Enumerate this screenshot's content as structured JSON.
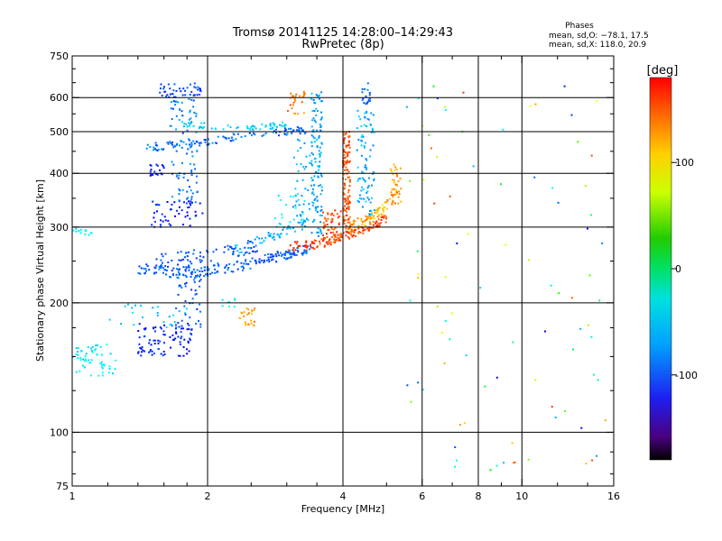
{
  "chart_data": {
    "type": "scatter",
    "title": "Tromsø 20141125 14:28:00–14:29:43",
    "subtitle": "RwPretec (8p)",
    "xlabel": "Frequency [MHz]",
    "ylabel": "Stationary phase Virtual Height [km]",
    "x_scale": "log",
    "y_scale": "log",
    "xlim": [
      1,
      16
    ],
    "ylim": [
      75,
      750
    ],
    "x_ticks": [
      1,
      2,
      4,
      6,
      8,
      10,
      16
    ],
    "x_tick_labels": [
      "1",
      "2",
      "4",
      "6",
      "8",
      "10",
      "16"
    ],
    "y_ticks": [
      75,
      100,
      200,
      300,
      400,
      500,
      600,
      750
    ],
    "y_tick_labels": [
      "75",
      "100",
      "200",
      "300",
      "400",
      "500",
      "600",
      "750"
    ],
    "x_minor_ticks": [
      1.2,
      1.4,
      1.6,
      1.8,
      2.5,
      3,
      3.5,
      5,
      7,
      9,
      12,
      14
    ],
    "y_minor_ticks": [
      80,
      90,
      125,
      150,
      175,
      250,
      350,
      450,
      550,
      650,
      700
    ],
    "x_gridlines": [
      2,
      4,
      6,
      8,
      10
    ],
    "y_gridlines": [
      100,
      200,
      300,
      400,
      500,
      600
    ],
    "grid": true,
    "phases_legend": {
      "title": "Phases",
      "lines": [
        "mean, sd,O: −78.1, 17.5",
        "mean, sd,X: 118.0, 20.9"
      ]
    },
    "colorbar": {
      "label": "[deg]",
      "min": -180,
      "max": 180,
      "ticks": [
        100,
        0,
        -100
      ],
      "tick_labels": [
        "100",
        "0",
        "-100"
      ],
      "colormap": "rainbow"
    },
    "traces": [
      {
        "kind": "band",
        "x": [
          1.0,
          1.25
        ],
        "y": [
          135,
          160
        ],
        "phase_range": [
          -65,
          -40
        ],
        "count": 60
      },
      {
        "kind": "curve",
        "pts": [
          [
            1.0,
            295
          ],
          [
            1.05,
            292
          ],
          [
            1.12,
            290
          ]
        ],
        "phase_range": [
          -60,
          -45
        ],
        "count": 14
      },
      {
        "kind": "band",
        "x": [
          1.4,
          1.85
        ],
        "y": [
          150,
          180
        ],
        "phase_range": [
          -125,
          -100
        ],
        "count": 90
      },
      {
        "kind": "band",
        "x": [
          1.2,
          1.8
        ],
        "y": [
          175,
          200
        ],
        "phase_range": [
          -75,
          -50
        ],
        "count": 25
      },
      {
        "kind": "band",
        "x": [
          1.7,
          1.95
        ],
        "y": [
          175,
          245
        ],
        "phase_range": [
          -115,
          -85
        ],
        "count": 45
      },
      {
        "kind": "curve",
        "pts": [
          [
            1.4,
            240
          ],
          [
            1.7,
            235
          ],
          [
            2.0,
            238
          ],
          [
            2.4,
            245
          ],
          [
            2.8,
            255
          ],
          [
            3.1,
            262
          ],
          [
            3.4,
            268
          ]
        ],
        "phase_range": [
          -110,
          -80
        ],
        "count": 200,
        "spread": 7
      },
      {
        "kind": "curve",
        "pts": [
          [
            1.5,
            250
          ],
          [
            1.8,
            255
          ],
          [
            2.2,
            262
          ],
          [
            2.6,
            272
          ]
        ],
        "phase_range": [
          -110,
          -90
        ],
        "count": 70,
        "spread": 9
      },
      {
        "kind": "curve",
        "pts": [
          [
            2.3,
            265
          ],
          [
            2.6,
            280
          ],
          [
            3.0,
            295
          ],
          [
            3.3,
            305
          ]
        ],
        "phase_range": [
          -85,
          -55
        ],
        "count": 60,
        "spread": 8
      },
      {
        "kind": "band",
        "x": [
          1.5,
          1.95
        ],
        "y": [
          300,
          345
        ],
        "phase_range": [
          -130,
          -105
        ],
        "count": 50
      },
      {
        "kind": "band",
        "x": [
          1.65,
          1.9
        ],
        "y": [
          340,
          600
        ],
        "phase_range": [
          -105,
          -70
        ],
        "count": 90
      },
      {
        "kind": "curve",
        "pts": [
          [
            1.4,
            460
          ],
          [
            1.6,
            462
          ],
          [
            1.85,
            470
          ],
          [
            2.1,
            480
          ],
          [
            2.5,
            490
          ],
          [
            3.0,
            500
          ],
          [
            3.3,
            505
          ]
        ],
        "phase_range": [
          -105,
          -75
        ],
        "count": 110,
        "spread": 10
      },
      {
        "kind": "curve",
        "pts": [
          [
            1.75,
            520
          ],
          [
            2.0,
            515
          ],
          [
            2.5,
            510
          ],
          [
            3.0,
            520
          ]
        ],
        "phase_range": [
          -70,
          -50
        ],
        "count": 60,
        "spread": 8
      },
      {
        "kind": "band",
        "x": [
          1.55,
          1.95
        ],
        "y": [
          600,
          650
        ],
        "phase_range": [
          -115,
          -90
        ],
        "count": 45
      },
      {
        "kind": "band",
        "x": [
          1.45,
          1.6
        ],
        "y": [
          395,
          420
        ],
        "phase_range": [
          -125,
          -105
        ],
        "count": 20
      },
      {
        "kind": "band",
        "x": [
          2.35,
          2.55
        ],
        "y": [
          175,
          195
        ],
        "phase_range": [
          120,
          150
        ],
        "count": 25
      },
      {
        "kind": "band",
        "x": [
          2.15,
          2.3
        ],
        "y": [
          195,
          205
        ],
        "phase_range": [
          -60,
          -45
        ],
        "count": 8
      },
      {
        "kind": "band",
        "x": [
          3.4,
          3.6
        ],
        "y": [
          280,
          620
        ],
        "phase_range": [
          -85,
          -60
        ],
        "count": 130
      },
      {
        "kind": "band",
        "x": [
          3.1,
          3.4
        ],
        "y": [
          310,
          480
        ],
        "phase_range": [
          -80,
          -60
        ],
        "count": 35
      },
      {
        "kind": "band",
        "x": [
          4.0,
          4.15
        ],
        "y": [
          290,
          500
        ],
        "phase_range": [
          140,
          175
        ],
        "count": 120
      },
      {
        "kind": "band",
        "x": [
          3.6,
          4.0
        ],
        "y": [
          275,
          330
        ],
        "phase_range": [
          140,
          175
        ],
        "count": 60
      },
      {
        "kind": "curve",
        "pts": [
          [
            3.0,
            270
          ],
          [
            3.4,
            272
          ],
          [
            3.8,
            280
          ],
          [
            4.2,
            290
          ],
          [
            4.6,
            300
          ],
          [
            5.0,
            315
          ]
        ],
        "phase_range": [
          145,
          175
        ],
        "count": 120,
        "spread": 7
      },
      {
        "kind": "curve",
        "pts": [
          [
            4.1,
            300
          ],
          [
            4.5,
            310
          ],
          [
            4.9,
            330
          ],
          [
            5.3,
            360
          ]
        ],
        "phase_range": [
          110,
          150
        ],
        "count": 80,
        "spread": 10
      },
      {
        "kind": "band",
        "x": [
          4.3,
          4.7
        ],
        "y": [
          320,
          560
        ],
        "phase_range": [
          -85,
          -55
        ],
        "count": 85
      },
      {
        "kind": "band",
        "x": [
          4.4,
          4.6
        ],
        "y": [
          580,
          650
        ],
        "phase_range": [
          -100,
          -80
        ],
        "count": 18
      },
      {
        "kind": "band",
        "x": [
          5.1,
          5.4
        ],
        "y": [
          340,
          420
        ],
        "phase_range": [
          115,
          150
        ],
        "count": 35
      },
      {
        "kind": "band",
        "x": [
          3.0,
          3.3
        ],
        "y": [
          540,
          620
        ],
        "phase_range": [
          125,
          160
        ],
        "count": 25
      },
      {
        "kind": "band",
        "x": [
          2.8,
          3.3
        ],
        "y": [
          300,
          360
        ],
        "phase_range": [
          -60,
          -40
        ],
        "count": 20
      }
    ],
    "scatter_noise": {
      "x": [
        5.5,
        15.5
      ],
      "y": [
        80,
        650
      ],
      "phase_range": [
        -130,
        170
      ],
      "count": 90
    }
  }
}
